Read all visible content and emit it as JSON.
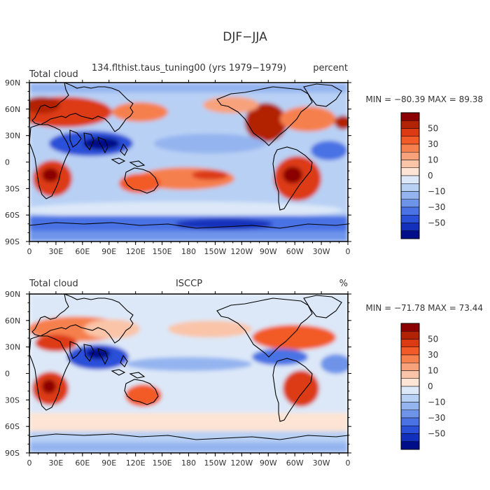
{
  "figure": {
    "title": "DJF−JJA"
  },
  "panels": [
    {
      "left_title": "Total cloud",
      "center_title": "134.flthist.taus_tuning00 (yrs 1979−1979)",
      "right_title": "percent",
      "stats": "MIN = −80.39  MAX =   89.38"
    },
    {
      "left_title": "Total cloud",
      "center_title": "ISCCP",
      "right_title": "%",
      "stats": "MIN = −71.78  MAX =   73.44"
    }
  ],
  "axes": {
    "x_ticks": [
      "0",
      "30E",
      "60E",
      "90E",
      "120E",
      "150E",
      "180",
      "150W",
      "120W",
      "90W",
      "60W",
      "30W",
      "0"
    ],
    "y_ticks": [
      "90N",
      "60N",
      "30N",
      "0",
      "30S",
      "60S",
      "90S"
    ]
  },
  "colorbar": {
    "labels": [
      "50",
      "30",
      "10",
      "0",
      "−10",
      "−30",
      "−50"
    ],
    "colors": [
      "#8b0000",
      "#b22204",
      "#dc3a12",
      "#f25a28",
      "#f6804e",
      "#f8a27c",
      "#fac4a8",
      "#fde4d4",
      "#dce8f8",
      "#b8d0f4",
      "#94b4f0",
      "#6e94ea",
      "#4a72e4",
      "#2a50d8",
      "#1230bc",
      "#000e8a"
    ]
  }
}
